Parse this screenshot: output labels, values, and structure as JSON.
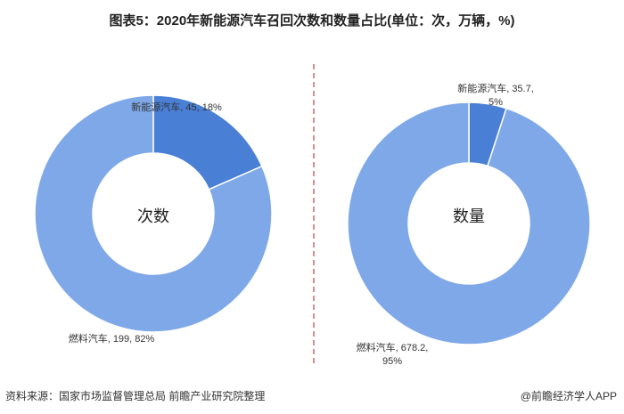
{
  "title": "图表5：2020年新能源汽车召回次数和数量占比(单位：次，万辆，%)",
  "source": "资料来源：国家市场监督管理总局 前瞻产业研究院整理",
  "brand": "@前瞻经济学人APP",
  "colors": {
    "new_energy": "#4a7fd6",
    "fuel": "#7ea8e8",
    "divider": "#c0504d"
  },
  "chart_data": [
    {
      "type": "pie",
      "center_label": "次数",
      "slices": [
        {
          "name": "新能源汽车",
          "value": 45,
          "percent": 18,
          "label": "新能源汽车, 45, 18%"
        },
        {
          "name": "燃料汽车",
          "value": 199,
          "percent": 82,
          "label": "燃料汽车, 199, 82%"
        }
      ]
    },
    {
      "type": "pie",
      "center_label": "数量",
      "slices": [
        {
          "name": "新能源汽车",
          "value": 35.7,
          "percent": 5,
          "label_line1": "新能源汽车, 35.7,",
          "label_line2": "5%"
        },
        {
          "name": "燃料汽车",
          "value": 678.2,
          "percent": 95,
          "label_line1": "燃料汽车, 678.2,",
          "label_line2": "95%"
        }
      ]
    }
  ]
}
